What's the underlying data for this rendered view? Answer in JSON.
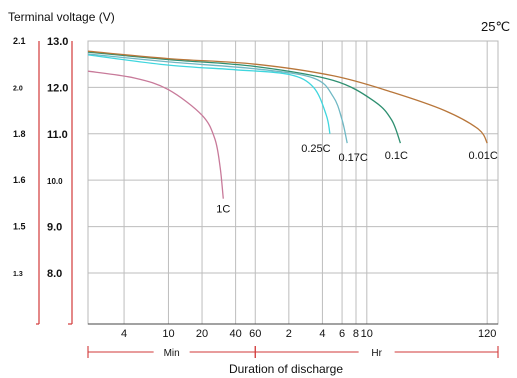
{
  "chart_data": {
    "type": "line",
    "title": "Terminal voltage (V)",
    "temperature": "25℃",
    "xlabel": "Duration of discharge",
    "x_units": [
      {
        "label": "Min",
        "from": "x_start",
        "to": "60"
      },
      {
        "label": "Hr",
        "from": "60",
        "to": "x_end"
      }
    ],
    "x_scale": "log",
    "xlim_minutes": [
      1.9,
      9000
    ],
    "x_ticks": [
      {
        "label": "4",
        "minutes": 4
      },
      {
        "label": "10",
        "minutes": 10
      },
      {
        "label": "20",
        "minutes": 20
      },
      {
        "label": "40",
        "minutes": 40
      },
      {
        "label": "60",
        "minutes": 60
      },
      {
        "label": "2",
        "minutes": 120
      },
      {
        "label": "4",
        "minutes": 240
      },
      {
        "label": "6",
        "minutes": 360
      },
      {
        "label": "8",
        "minutes": 480
      },
      {
        "label": "10",
        "minutes": 600
      },
      {
        "label": "120",
        "minutes": 7200
      }
    ],
    "ylim": [
      6.9,
      13.0
    ],
    "y_ticks": [
      {
        "label": "13.0",
        "value": 13.0,
        "small": false
      },
      {
        "label": "12.0",
        "value": 12.0,
        "small": false
      },
      {
        "label": "11.0",
        "value": 11.0,
        "small": false
      },
      {
        "label": "10.0",
        "value": 10.0,
        "small": true
      },
      {
        "label": "9.0",
        "value": 9.0,
        "small": false
      },
      {
        "label": "8.0",
        "value": 8.0,
        "small": false
      }
    ],
    "cell_ticks": [
      {
        "label": "2.1",
        "value": 13.0,
        "small": false
      },
      {
        "label": "2.0",
        "value": 12.0,
        "small": true
      },
      {
        "label": "1.8",
        "value": 11.0,
        "small": false
      },
      {
        "label": "1.6",
        "value": 10.0,
        "small": false
      },
      {
        "label": "1.5",
        "value": 9.0,
        "small": false
      },
      {
        "label": "1.3",
        "value": 8.0,
        "small": true
      }
    ],
    "grid": true,
    "series": [
      {
        "name": "1C",
        "color": "#c87a9a",
        "points": [
          [
            1.9,
            12.35
          ],
          [
            5,
            12.2
          ],
          [
            10,
            11.95
          ],
          [
            20,
            11.4
          ],
          [
            26,
            10.9
          ],
          [
            29,
            10.3
          ],
          [
            31,
            9.6
          ]
        ]
      },
      {
        "name": "0.25C",
        "color": "#3fd6de",
        "points": [
          [
            1.9,
            12.7
          ],
          [
            10,
            12.48
          ],
          [
            40,
            12.38
          ],
          [
            120,
            12.28
          ],
          [
            200,
            12.0
          ],
          [
            260,
            11.4
          ],
          [
            280,
            11.0
          ]
        ]
      },
      {
        "name": "0.17C",
        "color": "#6fb8c4",
        "points": [
          [
            1.9,
            12.72
          ],
          [
            10,
            12.55
          ],
          [
            60,
            12.4
          ],
          [
            200,
            12.2
          ],
          [
            300,
            11.8
          ],
          [
            360,
            11.3
          ],
          [
            400,
            10.8
          ]
        ]
      },
      {
        "name": "0.1C",
        "color": "#2e8f70",
        "points": [
          [
            1.9,
            12.76
          ],
          [
            10,
            12.6
          ],
          [
            60,
            12.45
          ],
          [
            300,
            12.15
          ],
          [
            700,
            11.7
          ],
          [
            1000,
            11.3
          ],
          [
            1200,
            10.8
          ]
        ]
      },
      {
        "name": "0.01C",
        "color": "#b8763a",
        "points": [
          [
            1.9,
            12.78
          ],
          [
            10,
            12.62
          ],
          [
            60,
            12.5
          ],
          [
            300,
            12.25
          ],
          [
            1000,
            11.9
          ],
          [
            3000,
            11.5
          ],
          [
            6000,
            11.1
          ],
          [
            7200,
            10.8
          ]
        ]
      }
    ]
  }
}
